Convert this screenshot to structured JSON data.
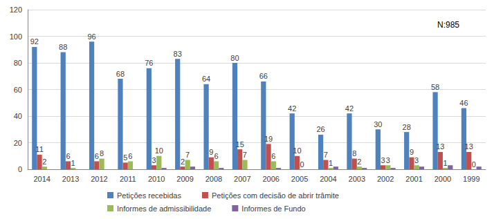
{
  "chart_data": {
    "type": "bar",
    "categories": [
      "2014",
      "2013",
      "2012",
      "2011",
      "2010",
      "2009",
      "2008",
      "2007",
      "2006",
      "2005",
      "2004",
      "2003",
      "2002",
      "2001",
      "2000",
      "1999"
    ],
    "series": [
      {
        "name": "Petições recebidas",
        "color": "#4f81bd",
        "data_labels": true,
        "values": [
          92,
          88,
          96,
          68,
          76,
          83,
          64,
          80,
          66,
          42,
          26,
          42,
          30,
          28,
          58,
          46
        ]
      },
      {
        "name": "Petições com decisão de abrir trâmite",
        "color": "#c0504d",
        "data_labels": true,
        "values": [
          11,
          6,
          6,
          5,
          3,
          2,
          9,
          15,
          19,
          10,
          7,
          8,
          3,
          9,
          13,
          13
        ]
      },
      {
        "name": "Informes de admissibilidade",
        "color": "#9bbb59",
        "data_labels": true,
        "values": [
          2,
          1,
          8,
          6,
          10,
          7,
          6,
          7,
          6,
          0,
          1,
          2,
          3,
          3,
          1,
          0
        ]
      },
      {
        "name": "Informes de Fundo",
        "color": "#8064a2",
        "data_labels": false,
        "values": [
          0,
          0,
          0,
          0,
          1,
          2,
          1,
          0,
          1,
          0,
          2,
          1,
          1,
          2,
          3,
          2
        ]
      }
    ],
    "annotation": "N:985",
    "ylim": [
      0,
      120
    ],
    "yticks": [
      0,
      20,
      40,
      60,
      80,
      100,
      120
    ],
    "grid": true,
    "legend": "bottom"
  }
}
